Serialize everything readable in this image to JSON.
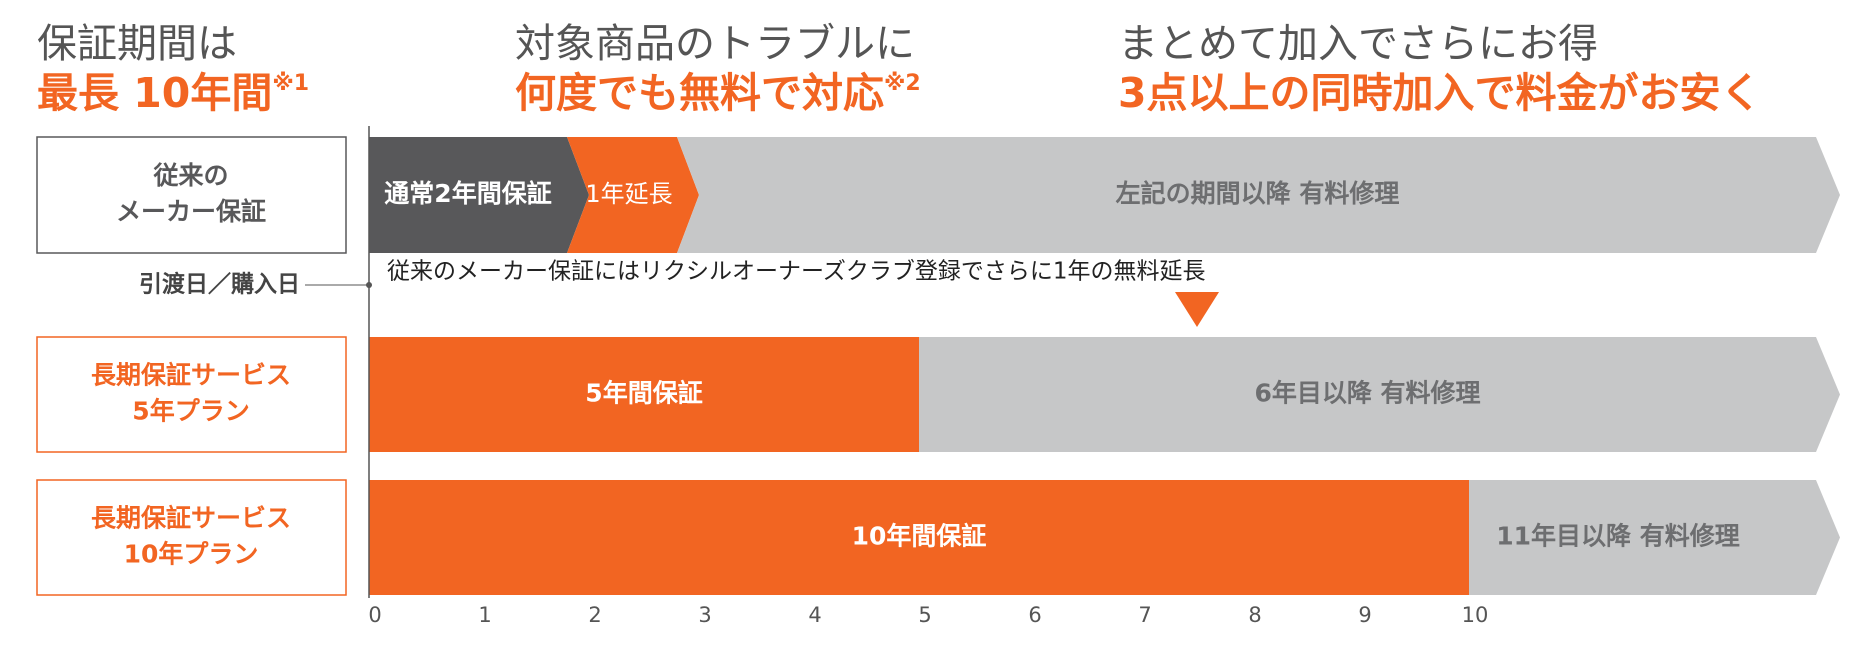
{
  "headlines": [
    {
      "line1": "保証期間は",
      "line2": "最長 10年間",
      "note": "※1"
    },
    {
      "line1": "対象商品のトラブルに",
      "line2": "何度でも無料で対応",
      "note": "※2"
    },
    {
      "line1": "まとめて加入でさらにお得",
      "line2": "3点以上の同時加入で料金がお安く"
    }
  ],
  "start_label": "引渡日／購入日",
  "extension_note": "従来のメーカー保証にはリクシルオーナーズクラブ登録でさらに1年の無料延長",
  "axis_ticks": [
    0,
    1,
    2,
    3,
    4,
    5,
    6,
    7,
    8,
    9,
    10
  ],
  "rows": [
    {
      "label": [
        "従来の",
        "メーカー保証"
      ],
      "color": "#58585a",
      "segments": [
        {
          "text": "通常2年間保証",
          "end": 2,
          "color": "#58585a"
        },
        {
          "text": "1年延長",
          "end": 3,
          "color": "#f26522"
        },
        {
          "text": "左記の期間以降 有料修理",
          "color": "#c6c7c8"
        }
      ]
    },
    {
      "label": [
        "長期保証サービス",
        "5年プラン"
      ],
      "color": "#f26522",
      "segments": [
        {
          "text": "5年間保証",
          "end": 5,
          "color": "#f26522"
        },
        {
          "text": "6年目以降 有料修理",
          "color": "#c6c7c8"
        }
      ]
    },
    {
      "label": [
        "長期保証サービス",
        "10年プラン"
      ],
      "color": "#f26522",
      "segments": [
        {
          "text": "10年間保証",
          "end": 10,
          "color": "#f26522"
        },
        {
          "text": "11年目以降 有料修理",
          "color": "#c6c7c8"
        }
      ]
    }
  ]
}
